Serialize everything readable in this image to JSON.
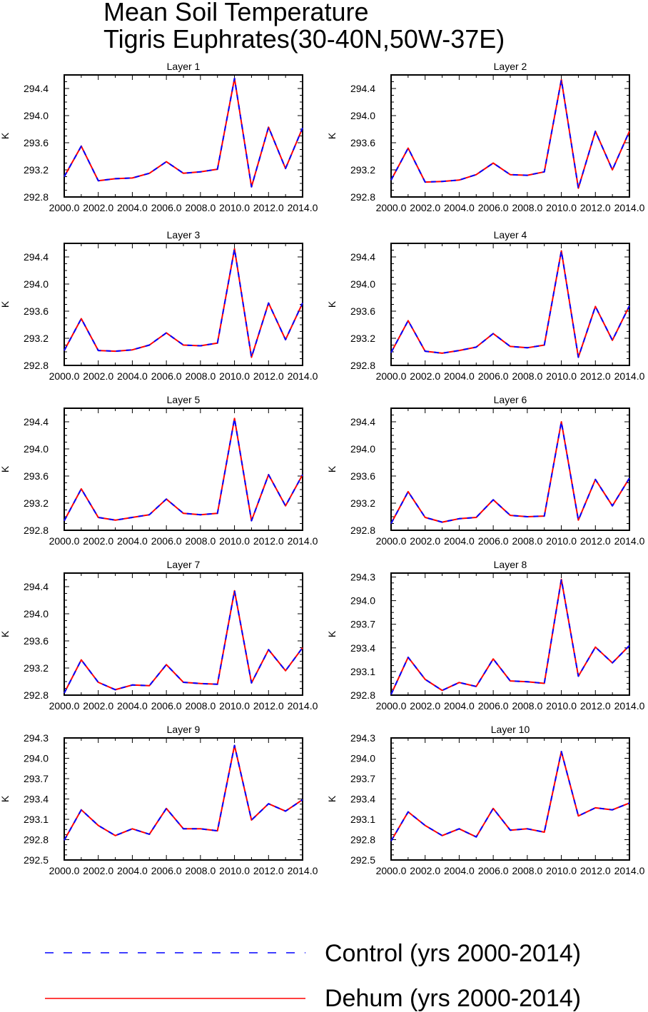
{
  "title": "Mean Soil Temperature",
  "subtitle": "Tigris Euphrates(30-40N,50W-37E)",
  "legend": {
    "control_label": "Control (yrs 2000-2014)",
    "dehum_label": "Dehum (yrs 2000-2014)",
    "control_color": "#0000ff",
    "dehum_color": "#ff0000"
  },
  "chart_data": [
    {
      "type": "line",
      "title": "Layer 1",
      "ylabel": "K",
      "xlim": [
        2000,
        2014
      ],
      "ylim": [
        292.8,
        294.6
      ],
      "xticks": [
        "2000.0",
        "2002.0",
        "2004.0",
        "2006.0",
        "2008.0",
        "2010.0",
        "2012.0",
        "2014.0"
      ],
      "yticks": [
        "292.8",
        "293.2",
        "293.6",
        "294.0",
        "294.4"
      ],
      "x": [
        2000,
        2001,
        2002,
        2003,
        2004,
        2005,
        2006,
        2007,
        2008,
        2009,
        2010,
        2011,
        2012,
        2013,
        2014
      ],
      "series": [
        {
          "name": "Control (yrs 2000-2014)",
          "values": [
            293.1,
            293.55,
            293.04,
            293.07,
            293.08,
            293.15,
            293.32,
            293.15,
            293.17,
            293.21,
            294.55,
            292.95,
            293.83,
            293.22,
            293.82
          ]
        },
        {
          "name": "Dehum (yrs 2000-2014)",
          "values": [
            293.1,
            293.55,
            293.04,
            293.07,
            293.08,
            293.15,
            293.32,
            293.15,
            293.17,
            293.21,
            294.55,
            292.95,
            293.83,
            293.22,
            293.82
          ]
        }
      ]
    },
    {
      "type": "line",
      "title": "Layer 2",
      "ylabel": "K",
      "xlim": [
        2000,
        2014
      ],
      "ylim": [
        292.8,
        294.6
      ],
      "xticks": [
        "2000.0",
        "2002.0",
        "2004.0",
        "2006.0",
        "2008.0",
        "2010.0",
        "2012.0",
        "2014.0"
      ],
      "yticks": [
        "292.8",
        "293.2",
        "293.6",
        "294.0",
        "294.4"
      ],
      "x": [
        2000,
        2001,
        2002,
        2003,
        2004,
        2005,
        2006,
        2007,
        2008,
        2009,
        2010,
        2011,
        2012,
        2013,
        2014
      ],
      "series": [
        {
          "name": "Control (yrs 2000-2014)",
          "values": [
            293.05,
            293.52,
            293.02,
            293.03,
            293.05,
            293.13,
            293.3,
            293.13,
            293.12,
            293.17,
            294.53,
            292.93,
            293.77,
            293.2,
            293.77
          ]
        },
        {
          "name": "Dehum (yrs 2000-2014)",
          "values": [
            293.05,
            293.52,
            293.02,
            293.03,
            293.05,
            293.13,
            293.3,
            293.13,
            293.12,
            293.17,
            294.53,
            292.93,
            293.77,
            293.2,
            293.77
          ]
        }
      ]
    },
    {
      "type": "line",
      "title": "Layer 3",
      "ylabel": "K",
      "xlim": [
        2000,
        2014
      ],
      "ylim": [
        292.8,
        294.6
      ],
      "xticks": [
        "2000.0",
        "2002.0",
        "2004.0",
        "2006.0",
        "2008.0",
        "2010.0",
        "2012.0",
        "2014.0"
      ],
      "yticks": [
        "292.8",
        "293.2",
        "293.6",
        "294.0",
        "294.4"
      ],
      "x": [
        2000,
        2001,
        2002,
        2003,
        2004,
        2005,
        2006,
        2007,
        2008,
        2009,
        2010,
        2011,
        2012,
        2013,
        2014
      ],
      "series": [
        {
          "name": "Control (yrs 2000-2014)",
          "values": [
            293.02,
            293.49,
            293.02,
            293.01,
            293.03,
            293.1,
            293.28,
            293.1,
            293.09,
            293.13,
            294.52,
            292.92,
            293.72,
            293.18,
            293.72
          ]
        },
        {
          "name": "Dehum (yrs 2000-2014)",
          "values": [
            293.02,
            293.49,
            293.02,
            293.01,
            293.03,
            293.1,
            293.28,
            293.1,
            293.09,
            293.13,
            294.52,
            292.92,
            293.72,
            293.18,
            293.72
          ]
        }
      ]
    },
    {
      "type": "line",
      "title": "Layer 4",
      "ylabel": "K",
      "xlim": [
        2000,
        2014
      ],
      "ylim": [
        292.8,
        294.6
      ],
      "xticks": [
        "2000.0",
        "2002.0",
        "2004.0",
        "2006.0",
        "2008.0",
        "2010.0",
        "2012.0",
        "2014.0"
      ],
      "yticks": [
        "292.8",
        "293.2",
        "293.6",
        "294.0",
        "294.4"
      ],
      "x": [
        2000,
        2001,
        2002,
        2003,
        2004,
        2005,
        2006,
        2007,
        2008,
        2009,
        2010,
        2011,
        2012,
        2013,
        2014
      ],
      "series": [
        {
          "name": "Control (yrs 2000-2014)",
          "values": [
            292.99,
            293.46,
            293.01,
            292.98,
            293.02,
            293.07,
            293.27,
            293.08,
            293.06,
            293.1,
            294.49,
            292.92,
            293.67,
            293.17,
            293.68
          ]
        },
        {
          "name": "Dehum (yrs 2000-2014)",
          "values": [
            292.99,
            293.46,
            293.01,
            292.98,
            293.02,
            293.07,
            293.27,
            293.08,
            293.06,
            293.1,
            294.49,
            292.92,
            293.67,
            293.17,
            293.68
          ]
        }
      ]
    },
    {
      "type": "line",
      "title": "Layer 5",
      "ylabel": "K",
      "xlim": [
        2000,
        2014
      ],
      "ylim": [
        292.8,
        294.6
      ],
      "xticks": [
        "2000.0",
        "2002.0",
        "2004.0",
        "2006.0",
        "2008.0",
        "2010.0",
        "2012.0",
        "2014.0"
      ],
      "yticks": [
        "292.8",
        "293.2",
        "293.6",
        "294.0",
        "294.4"
      ],
      "x": [
        2000,
        2001,
        2002,
        2003,
        2004,
        2005,
        2006,
        2007,
        2008,
        2009,
        2010,
        2011,
        2012,
        2013,
        2014
      ],
      "series": [
        {
          "name": "Control (yrs 2000-2014)",
          "values": [
            292.94,
            293.41,
            292.99,
            292.95,
            292.99,
            293.03,
            293.26,
            293.05,
            293.03,
            293.05,
            294.45,
            292.94,
            293.62,
            293.16,
            293.62
          ]
        },
        {
          "name": "Dehum (yrs 2000-2014)",
          "values": [
            292.94,
            293.41,
            292.99,
            292.95,
            292.99,
            293.03,
            293.26,
            293.05,
            293.03,
            293.05,
            294.45,
            292.94,
            293.62,
            293.16,
            293.62
          ]
        }
      ]
    },
    {
      "type": "line",
      "title": "Layer 6",
      "ylabel": "K",
      "xlim": [
        2000,
        2014
      ],
      "ylim": [
        292.8,
        294.6
      ],
      "xticks": [
        "2000.0",
        "2002.0",
        "2004.0",
        "2006.0",
        "2008.0",
        "2010.0",
        "2012.0",
        "2014.0"
      ],
      "yticks": [
        "292.8",
        "293.2",
        "293.6",
        "294.0",
        "294.4"
      ],
      "x": [
        2000,
        2001,
        2002,
        2003,
        2004,
        2005,
        2006,
        2007,
        2008,
        2009,
        2010,
        2011,
        2012,
        2013,
        2014
      ],
      "series": [
        {
          "name": "Control (yrs 2000-2014)",
          "values": [
            292.9,
            293.37,
            292.99,
            292.92,
            292.97,
            292.99,
            293.25,
            293.02,
            293.0,
            293.01,
            294.4,
            292.95,
            293.55,
            293.16,
            293.57
          ]
        },
        {
          "name": "Dehum (yrs 2000-2014)",
          "values": [
            292.9,
            293.37,
            292.99,
            292.92,
            292.97,
            292.99,
            293.25,
            293.02,
            293.0,
            293.01,
            294.4,
            292.95,
            293.55,
            293.16,
            293.57
          ]
        }
      ]
    },
    {
      "type": "line",
      "title": "Layer 7",
      "ylabel": "K",
      "xlim": [
        2000,
        2014
      ],
      "ylim": [
        292.8,
        294.6
      ],
      "xticks": [
        "2000.0",
        "2002.0",
        "2004.0",
        "2006.0",
        "2008.0",
        "2010.0",
        "2012.0",
        "2014.0"
      ],
      "yticks": [
        "292.8",
        "293.2",
        "293.6",
        "294.0",
        "294.4"
      ],
      "x": [
        2000,
        2001,
        2002,
        2003,
        2004,
        2005,
        2006,
        2007,
        2008,
        2009,
        2010,
        2011,
        2012,
        2013,
        2014
      ],
      "series": [
        {
          "name": "Control (yrs 2000-2014)",
          "values": [
            292.83,
            293.32,
            292.99,
            292.88,
            292.95,
            292.94,
            293.25,
            292.99,
            292.97,
            292.96,
            294.34,
            292.98,
            293.47,
            293.16,
            293.5
          ]
        },
        {
          "name": "Dehum (yrs 2000-2014)",
          "values": [
            292.83,
            293.32,
            292.99,
            292.88,
            292.95,
            292.94,
            293.25,
            292.99,
            292.97,
            292.96,
            294.34,
            292.98,
            293.47,
            293.16,
            293.5
          ]
        }
      ]
    },
    {
      "type": "line",
      "title": "Layer 8",
      "ylabel": "K",
      "xlim": [
        2000,
        2014
      ],
      "ylim": [
        292.8,
        294.35
      ],
      "xticks": [
        "2000.0",
        "2002.0",
        "2004.0",
        "2006.0",
        "2008.0",
        "2010.0",
        "2012.0",
        "2014.0"
      ],
      "yticks": [
        "292.8",
        "293.1",
        "293.4",
        "293.7",
        "294.0",
        "294.3"
      ],
      "x": [
        2000,
        2001,
        2002,
        2003,
        2004,
        2005,
        2006,
        2007,
        2008,
        2009,
        2010,
        2011,
        2012,
        2013,
        2014
      ],
      "series": [
        {
          "name": "Control (yrs 2000-2014)",
          "values": [
            292.81,
            293.28,
            293.0,
            292.86,
            292.96,
            292.91,
            293.26,
            292.98,
            292.97,
            292.95,
            294.27,
            293.04,
            293.41,
            293.21,
            293.43
          ]
        },
        {
          "name": "Dehum (yrs 2000-2014)",
          "values": [
            292.81,
            293.28,
            293.0,
            292.86,
            292.96,
            292.91,
            293.26,
            292.98,
            292.97,
            292.95,
            294.27,
            293.04,
            293.41,
            293.21,
            293.43
          ]
        }
      ]
    },
    {
      "type": "line",
      "title": "Layer 9",
      "ylabel": "K",
      "xlim": [
        2000,
        2014
      ],
      "ylim": [
        292.5,
        294.3
      ],
      "xticks": [
        "2000.0",
        "2002.0",
        "2004.0",
        "2006.0",
        "2008.0",
        "2010.0",
        "2012.0",
        "2014.0"
      ],
      "yticks": [
        "292.5",
        "292.8",
        "293.1",
        "293.4",
        "293.7",
        "294.0",
        "294.3"
      ],
      "x": [
        2000,
        2001,
        2002,
        2003,
        2004,
        2005,
        2006,
        2007,
        2008,
        2009,
        2010,
        2011,
        2012,
        2013,
        2014
      ],
      "series": [
        {
          "name": "Control (yrs 2000-2014)",
          "values": [
            292.79,
            293.24,
            293.01,
            292.86,
            292.96,
            292.88,
            293.26,
            292.96,
            292.96,
            292.93,
            294.19,
            293.09,
            293.33,
            293.22,
            293.39
          ]
        },
        {
          "name": "Dehum (yrs 2000-2014)",
          "values": [
            292.79,
            293.24,
            293.01,
            292.86,
            292.96,
            292.88,
            293.26,
            292.96,
            292.96,
            292.93,
            294.19,
            293.09,
            293.33,
            293.22,
            293.39
          ]
        }
      ]
    },
    {
      "type": "line",
      "title": "Layer 10",
      "ylabel": "K",
      "xlim": [
        2000,
        2014
      ],
      "ylim": [
        292.5,
        294.3
      ],
      "xticks": [
        "2000.0",
        "2002.0",
        "2004.0",
        "2006.0",
        "2008.0",
        "2010.0",
        "2012.0",
        "2014.0"
      ],
      "yticks": [
        "292.5",
        "292.8",
        "293.1",
        "293.4",
        "293.7",
        "294.0",
        "294.3"
      ],
      "x": [
        2000,
        2001,
        2002,
        2003,
        2004,
        2005,
        2006,
        2007,
        2008,
        2009,
        2010,
        2011,
        2012,
        2013,
        2014
      ],
      "series": [
        {
          "name": "Control (yrs 2000-2014)",
          "values": [
            292.78,
            293.21,
            293.01,
            292.86,
            292.96,
            292.84,
            293.26,
            292.94,
            292.96,
            292.91,
            294.1,
            293.15,
            293.27,
            293.24,
            293.34
          ]
        },
        {
          "name": "Dehum (yrs 2000-2014)",
          "values": [
            292.78,
            293.21,
            293.01,
            292.86,
            292.96,
            292.84,
            293.26,
            292.94,
            292.96,
            292.91,
            294.1,
            293.15,
            293.27,
            293.24,
            293.34
          ]
        }
      ]
    }
  ]
}
